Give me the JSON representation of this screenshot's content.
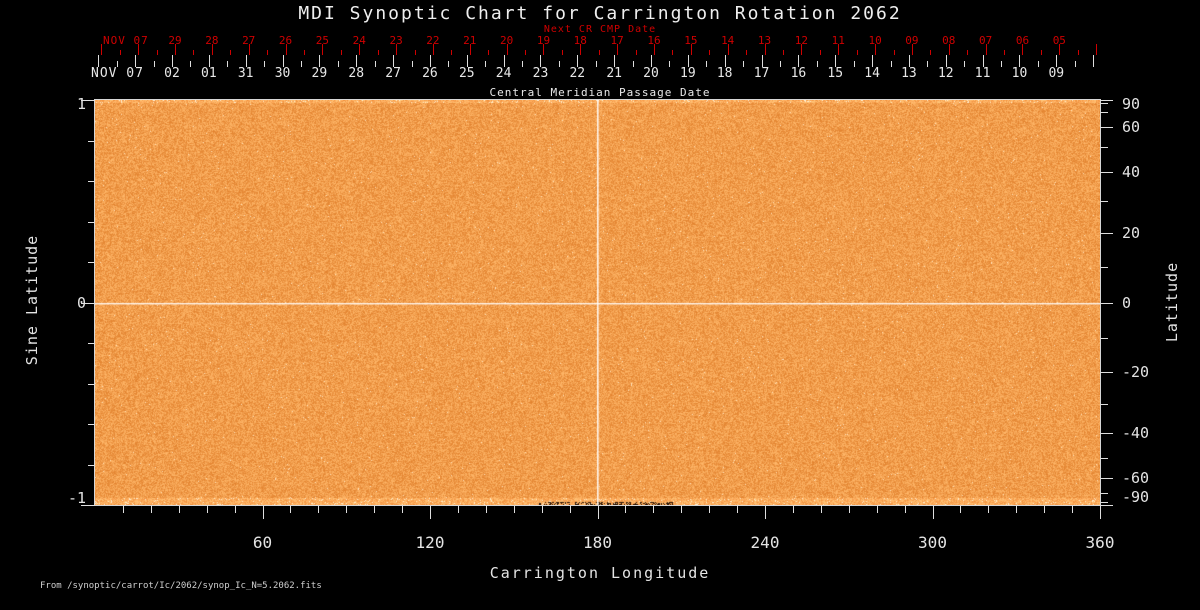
{
  "title": "MDI Synoptic Chart for Carrington Rotation 2062",
  "top_axes": {
    "next_cr_label": "Next CR CMP Date",
    "next_cr_month": "NOV 07",
    "next_cr_days": [
      "29",
      "28",
      "27",
      "26",
      "25",
      "24",
      "23",
      "22",
      "21",
      "20",
      "19",
      "18",
      "17",
      "16",
      "15",
      "14",
      "13",
      "12",
      "11",
      "10",
      "09",
      "08",
      "07",
      "06",
      "05"
    ],
    "cmp_month": "NOV 07",
    "cmp_days": [
      "02",
      "01",
      "31",
      "30",
      "29",
      "28",
      "27",
      "26",
      "25",
      "24",
      "23",
      "22",
      "21",
      "20",
      "19",
      "18",
      "17",
      "16",
      "15",
      "14",
      "13",
      "12",
      "11",
      "10",
      "09"
    ],
    "cmp_axis_label": "Central Meridian Passage Date"
  },
  "axes": {
    "left_label": "Sine Latitude",
    "left_tick_labels": [
      "1",
      "0",
      "-1"
    ],
    "left_tick_sines": [
      1,
      0,
      -1
    ],
    "right_label": "Latitude",
    "right_tick_labels": [
      "90",
      "60",
      "40",
      "20",
      "0",
      "-20",
      "-40",
      "-60",
      "-90"
    ],
    "right_tick_degrees": [
      90,
      60,
      40,
      20,
      0,
      -20,
      -40,
      -60,
      -90
    ],
    "bottom_label": "Carrington Longitude",
    "bottom_tick_labels": [
      "60",
      "120",
      "180",
      "240",
      "300",
      "360"
    ],
    "bottom_tick_degrees": [
      60,
      120,
      180,
      240,
      300,
      360
    ]
  },
  "footer": {
    "source": "From /synoptic/carrot/Ic/2062/synop_Ic_N=5.2062.fits"
  },
  "colors": {
    "background": "#000000",
    "foreground": "#e4e4e4",
    "next_cr_red": "#cf0000",
    "image_base": "#f39a4f",
    "image_dark": "#e28430",
    "image_light": "#ffbe78",
    "crosshair": "#ffffff"
  },
  "chart_data": {
    "type": "heatmap",
    "title": "MDI Synoptic Chart for Carrington Rotation 2062",
    "xlabel": "Carrington Longitude",
    "ylabel_left": "Sine Latitude",
    "ylabel_right": "Latitude",
    "top_axis_label": "Central Meridian Passage Date",
    "top_axis_secondary_label": "Next CR CMP Date",
    "xlim": [
      0,
      360
    ],
    "ylim_sine_latitude": [
      -1,
      1
    ],
    "days_per_rotation": 27.2753,
    "grid": {
      "vertical_line_longitude_deg": 180,
      "horizontal_line_sine_latitude": 0
    },
    "content_description": "Uniform fine-grained orange solar continuum intensity noise covering the whole map; slightly brighter speckled rows at top and bottom edges; small dark data-gap notches along the bottom edge near 160-205 deg longitude; white crosshair lines at longitude 180 and sine latitude 0."
  }
}
